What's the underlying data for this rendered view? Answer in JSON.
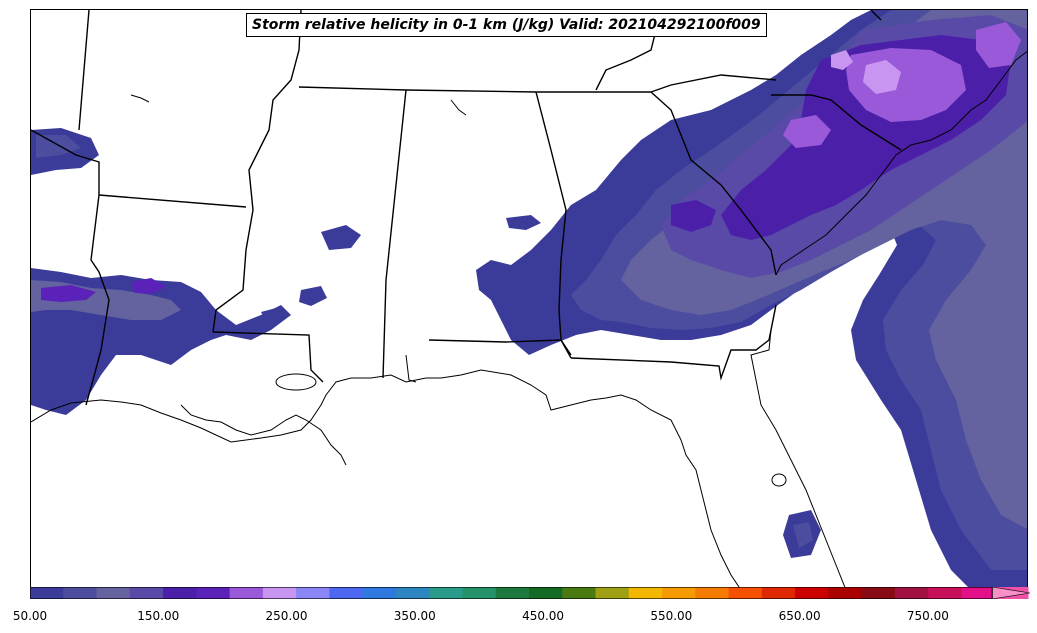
{
  "title": "Storm relative helicity in 0-1 km (J/kg) Valid: 202104292100f009",
  "colorbar": {
    "min": 50,
    "max": 800,
    "step": 25,
    "extend": "max",
    "ticks": [
      "50.00",
      "150.00",
      "250.00",
      "350.00",
      "450.00",
      "550.00",
      "650.00",
      "750.00"
    ],
    "colors": [
      "#3b3b9a",
      "#4d4d9f",
      "#64639f",
      "#5a4aa8",
      "#4b1fa8",
      "#5a22b8",
      "#9a59d9",
      "#c895f0",
      "#8b86f5",
      "#4d67f0",
      "#2f78e0",
      "#2d86c0",
      "#2a9a8a",
      "#26926a",
      "#1c7a3e",
      "#146b26",
      "#4a7a12",
      "#a0a014",
      "#f2b800",
      "#f59a00",
      "#f57a00",
      "#f55000",
      "#e02800",
      "#cc0000",
      "#aa0000",
      "#880a14",
      "#a01040",
      "#c8105a",
      "#e4108a",
      "#f050a8"
    ],
    "extend_color": "#f890c8"
  },
  "helicity_palette": {
    "background": "#3b3b9a",
    "level1": "#4d4d9f",
    "level2": "#64639f",
    "level3": "#5a4aa8",
    "level4": "#4b1fa8",
    "level5": "#9a59d9",
    "level6": "#c895f0"
  }
}
